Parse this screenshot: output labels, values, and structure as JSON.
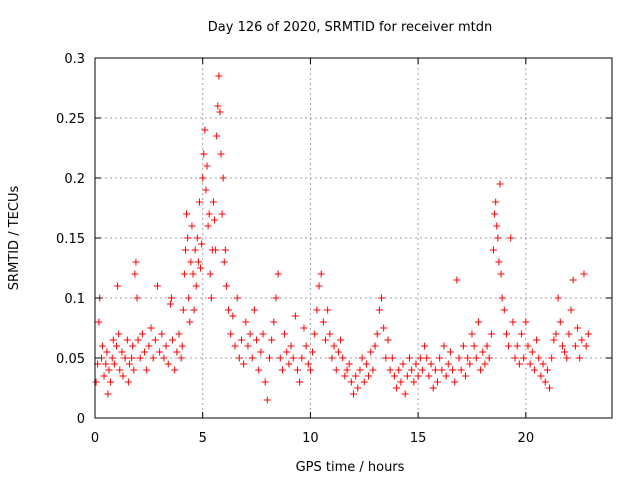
{
  "chart_data": {
    "type": "scatter",
    "title": "Day 126 of 2020, SRMTID for receiver mtdn",
    "xlabel": "GPS time / hours",
    "ylabel": "SRMTID / TECUs",
    "xlim": [
      0,
      24
    ],
    "ylim": [
      0,
      0.3
    ],
    "xticks": [
      0,
      5,
      10,
      15,
      20
    ],
    "xtick_labels": [
      "0",
      "5",
      "10",
      "15",
      "20"
    ],
    "yticks": [
      0,
      0.05,
      0.1,
      0.15,
      0.2,
      0.25,
      0.3
    ],
    "ytick_labels": [
      "0",
      "0.05",
      "0.1",
      "0.15",
      "0.2",
      "0.25",
      "0.3"
    ],
    "grid": true,
    "marker": "+",
    "color": "#ff0000",
    "series": [
      {
        "name": "SRMTID",
        "points": [
          [
            0.05,
            0.03
          ],
          [
            0.12,
            0.045
          ],
          [
            0.18,
            0.08
          ],
          [
            0.22,
            0.1
          ],
          [
            0.3,
            0.05
          ],
          [
            0.35,
            0.06
          ],
          [
            0.42,
            0.035
          ],
          [
            0.5,
            0.045
          ],
          [
            0.55,
            0.055
          ],
          [
            0.6,
            0.02
          ],
          [
            0.65,
            0.04
          ],
          [
            0.72,
            0.03
          ],
          [
            0.8,
            0.05
          ],
          [
            0.85,
            0.065
          ],
          [
            0.9,
            0.045
          ],
          [
            1.0,
            0.06
          ],
          [
            1.05,
            0.11
          ],
          [
            1.1,
            0.07
          ],
          [
            1.15,
            0.04
          ],
          [
            1.25,
            0.055
          ],
          [
            1.3,
            0.035
          ],
          [
            1.4,
            0.05
          ],
          [
            1.5,
            0.065
          ],
          [
            1.55,
            0.03
          ],
          [
            1.6,
            0.045
          ],
          [
            1.7,
            0.05
          ],
          [
            1.75,
            0.06
          ],
          [
            1.8,
            0.04
          ],
          [
            1.85,
            0.12
          ],
          [
            1.9,
            0.13
          ],
          [
            1.95,
            0.1
          ],
          [
            2.0,
            0.065
          ],
          [
            2.1,
            0.05
          ],
          [
            2.2,
            0.07
          ],
          [
            2.3,
            0.055
          ],
          [
            2.4,
            0.04
          ],
          [
            2.5,
            0.06
          ],
          [
            2.6,
            0.075
          ],
          [
            2.7,
            0.05
          ],
          [
            2.8,
            0.065
          ],
          [
            2.9,
            0.11
          ],
          [
            3.0,
            0.055
          ],
          [
            3.1,
            0.07
          ],
          [
            3.2,
            0.05
          ],
          [
            3.3,
            0.06
          ],
          [
            3.4,
            0.045
          ],
          [
            3.5,
            0.095
          ],
          [
            3.55,
            0.1
          ],
          [
            3.6,
            0.065
          ],
          [
            3.7,
            0.04
          ],
          [
            3.8,
            0.055
          ],
          [
            3.9,
            0.07
          ],
          [
            4.0,
            0.05
          ],
          [
            4.05,
            0.06
          ],
          [
            4.1,
            0.09
          ],
          [
            4.15,
            0.12
          ],
          [
            4.2,
            0.14
          ],
          [
            4.25,
            0.17
          ],
          [
            4.3,
            0.15
          ],
          [
            4.35,
            0.1
          ],
          [
            4.4,
            0.08
          ],
          [
            4.45,
            0.13
          ],
          [
            4.5,
            0.16
          ],
          [
            4.55,
            0.12
          ],
          [
            4.6,
            0.09
          ],
          [
            4.65,
            0.14
          ],
          [
            4.7,
            0.11
          ],
          [
            4.75,
            0.15
          ],
          [
            4.8,
            0.13
          ],
          [
            4.85,
            0.18
          ],
          [
            4.9,
            0.125
          ],
          [
            4.95,
            0.145
          ],
          [
            5.0,
            0.2
          ],
          [
            5.05,
            0.22
          ],
          [
            5.1,
            0.24
          ],
          [
            5.15,
            0.19
          ],
          [
            5.2,
            0.21
          ],
          [
            5.25,
            0.16
          ],
          [
            5.3,
            0.17
          ],
          [
            5.35,
            0.12
          ],
          [
            5.4,
            0.1
          ],
          [
            5.45,
            0.14
          ],
          [
            5.5,
            0.18
          ],
          [
            5.55,
            0.165
          ],
          [
            5.6,
            0.14
          ],
          [
            5.65,
            0.235
          ],
          [
            5.7,
            0.26
          ],
          [
            5.75,
            0.285
          ],
          [
            5.8,
            0.255
          ],
          [
            5.85,
            0.22
          ],
          [
            5.9,
            0.17
          ],
          [
            5.95,
            0.2
          ],
          [
            6.0,
            0.13
          ],
          [
            6.05,
            0.14
          ],
          [
            6.1,
            0.11
          ],
          [
            6.2,
            0.09
          ],
          [
            6.3,
            0.07
          ],
          [
            6.4,
            0.085
          ],
          [
            6.5,
            0.06
          ],
          [
            6.6,
            0.1
          ],
          [
            6.7,
            0.05
          ],
          [
            6.8,
            0.065
          ],
          [
            6.9,
            0.045
          ],
          [
            7.0,
            0.08
          ],
          [
            7.1,
            0.06
          ],
          [
            7.2,
            0.07
          ],
          [
            7.3,
            0.05
          ],
          [
            7.4,
            0.09
          ],
          [
            7.5,
            0.065
          ],
          [
            7.6,
            0.04
          ],
          [
            7.7,
            0.055
          ],
          [
            7.8,
            0.07
          ],
          [
            7.9,
            0.03
          ],
          [
            8.0,
            0.015
          ],
          [
            8.1,
            0.05
          ],
          [
            8.2,
            0.065
          ],
          [
            8.3,
            0.08
          ],
          [
            8.4,
            0.1
          ],
          [
            8.5,
            0.12
          ],
          [
            8.6,
            0.05
          ],
          [
            8.7,
            0.04
          ],
          [
            8.8,
            0.07
          ],
          [
            8.9,
            0.055
          ],
          [
            9.0,
            0.045
          ],
          [
            9.1,
            0.06
          ],
          [
            9.2,
            0.05
          ],
          [
            9.3,
            0.085
          ],
          [
            9.4,
            0.04
          ],
          [
            9.5,
            0.03
          ],
          [
            9.6,
            0.05
          ],
          [
            9.7,
            0.075
          ],
          [
            9.8,
            0.06
          ],
          [
            9.9,
            0.045
          ],
          [
            10.0,
            0.04
          ],
          [
            10.1,
            0.055
          ],
          [
            10.2,
            0.07
          ],
          [
            10.3,
            0.09
          ],
          [
            10.4,
            0.11
          ],
          [
            10.5,
            0.12
          ],
          [
            10.6,
            0.08
          ],
          [
            10.7,
            0.065
          ],
          [
            10.8,
            0.09
          ],
          [
            10.9,
            0.07
          ],
          [
            11.0,
            0.05
          ],
          [
            11.1,
            0.06
          ],
          [
            11.2,
            0.04
          ],
          [
            11.3,
            0.055
          ],
          [
            11.4,
            0.065
          ],
          [
            11.5,
            0.05
          ],
          [
            11.6,
            0.035
          ],
          [
            11.7,
            0.04
          ],
          [
            11.8,
            0.045
          ],
          [
            11.9,
            0.03
          ],
          [
            12.0,
            0.02
          ],
          [
            12.1,
            0.035
          ],
          [
            12.2,
            0.025
          ],
          [
            12.3,
            0.04
          ],
          [
            12.4,
            0.05
          ],
          [
            12.5,
            0.03
          ],
          [
            12.6,
            0.045
          ],
          [
            12.7,
            0.035
          ],
          [
            12.8,
            0.055
          ],
          [
            12.9,
            0.04
          ],
          [
            13.0,
            0.06
          ],
          [
            13.1,
            0.07
          ],
          [
            13.2,
            0.09
          ],
          [
            13.3,
            0.1
          ],
          [
            13.4,
            0.075
          ],
          [
            13.5,
            0.05
          ],
          [
            13.6,
            0.065
          ],
          [
            13.7,
            0.04
          ],
          [
            13.8,
            0.05
          ],
          [
            13.9,
            0.035
          ],
          [
            14.0,
            0.025
          ],
          [
            14.1,
            0.04
          ],
          [
            14.2,
            0.03
          ],
          [
            14.3,
            0.045
          ],
          [
            14.4,
            0.02
          ],
          [
            14.5,
            0.035
          ],
          [
            14.6,
            0.05
          ],
          [
            14.7,
            0.04
          ],
          [
            14.8,
            0.03
          ],
          [
            14.9,
            0.045
          ],
          [
            15.0,
            0.035
          ],
          [
            15.1,
            0.05
          ],
          [
            15.2,
            0.04
          ],
          [
            15.3,
            0.06
          ],
          [
            15.4,
            0.05
          ],
          [
            15.5,
            0.035
          ],
          [
            15.6,
            0.045
          ],
          [
            15.7,
            0.025
          ],
          [
            15.8,
            0.04
          ],
          [
            15.9,
            0.03
          ],
          [
            16.0,
            0.05
          ],
          [
            16.1,
            0.04
          ],
          [
            16.2,
            0.06
          ],
          [
            16.3,
            0.035
          ],
          [
            16.4,
            0.045
          ],
          [
            16.5,
            0.055
          ],
          [
            16.6,
            0.04
          ],
          [
            16.7,
            0.03
          ],
          [
            16.8,
            0.115
          ],
          [
            16.9,
            0.05
          ],
          [
            17.0,
            0.04
          ],
          [
            17.1,
            0.06
          ],
          [
            17.2,
            0.035
          ],
          [
            17.3,
            0.05
          ],
          [
            17.4,
            0.045
          ],
          [
            17.5,
            0.07
          ],
          [
            17.6,
            0.06
          ],
          [
            17.7,
            0.05
          ],
          [
            17.8,
            0.08
          ],
          [
            17.9,
            0.04
          ],
          [
            18.0,
            0.055
          ],
          [
            18.1,
            0.045
          ],
          [
            18.2,
            0.06
          ],
          [
            18.3,
            0.05
          ],
          [
            18.4,
            0.07
          ],
          [
            18.5,
            0.14
          ],
          [
            18.55,
            0.17
          ],
          [
            18.6,
            0.18
          ],
          [
            18.65,
            0.16
          ],
          [
            18.7,
            0.15
          ],
          [
            18.75,
            0.13
          ],
          [
            18.8,
            0.195
          ],
          [
            18.85,
            0.12
          ],
          [
            18.9,
            0.1
          ],
          [
            19.0,
            0.09
          ],
          [
            19.1,
            0.07
          ],
          [
            19.2,
            0.06
          ],
          [
            19.3,
            0.15
          ],
          [
            19.4,
            0.08
          ],
          [
            19.5,
            0.05
          ],
          [
            19.6,
            0.06
          ],
          [
            19.7,
            0.045
          ],
          [
            19.8,
            0.07
          ],
          [
            19.9,
            0.05
          ],
          [
            20.0,
            0.08
          ],
          [
            20.1,
            0.06
          ],
          [
            20.2,
            0.045
          ],
          [
            20.3,
            0.055
          ],
          [
            20.4,
            0.04
          ],
          [
            20.5,
            0.065
          ],
          [
            20.6,
            0.05
          ],
          [
            20.7,
            0.035
          ],
          [
            20.8,
            0.045
          ],
          [
            20.9,
            0.03
          ],
          [
            21.0,
            0.04
          ],
          [
            21.1,
            0.025
          ],
          [
            21.2,
            0.05
          ],
          [
            21.3,
            0.065
          ],
          [
            21.4,
            0.07
          ],
          [
            21.5,
            0.1
          ],
          [
            21.6,
            0.08
          ],
          [
            21.7,
            0.06
          ],
          [
            21.8,
            0.055
          ],
          [
            21.9,
            0.05
          ],
          [
            22.0,
            0.07
          ],
          [
            22.1,
            0.09
          ],
          [
            22.2,
            0.115
          ],
          [
            22.3,
            0.06
          ],
          [
            22.4,
            0.075
          ],
          [
            22.5,
            0.05
          ],
          [
            22.6,
            0.065
          ],
          [
            22.7,
            0.12
          ],
          [
            22.8,
            0.06
          ],
          [
            22.9,
            0.07
          ]
        ]
      }
    ]
  }
}
